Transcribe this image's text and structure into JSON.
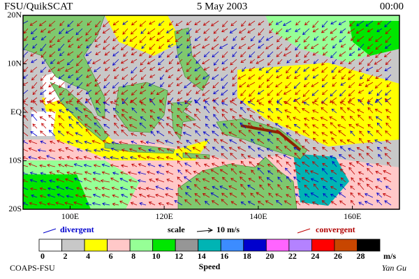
{
  "header": {
    "title": "FSU/QuikSCAT",
    "date": "5 May 2003",
    "time": "00:00"
  },
  "map": {
    "lat_labels": [
      "20N",
      "10N",
      "EQ",
      "10S",
      "20S"
    ],
    "lon_labels": [
      "100E",
      "120E",
      "140E",
      "160E"
    ]
  },
  "legend": {
    "divergent": "divergent",
    "scale": "scale",
    "scale_value": "10 m/s",
    "convergent": "convergent"
  },
  "colorbar": {
    "ticks": [
      0,
      2,
      4,
      6,
      8,
      10,
      12,
      14,
      16,
      18,
      20,
      22,
      24,
      26,
      28
    ],
    "unit": "m/s",
    "title": "Speed",
    "colors": [
      "#ffffff",
      "#c8c8c8",
      "#ffff00",
      "#ffc8c8",
      "#96ff96",
      "#00e600",
      "#969696",
      "#00b4b4",
      "#3c8cff",
      "#0000cd",
      "#ff64ff",
      "#b482ff",
      "#ff0000",
      "#c84600",
      "#000000"
    ]
  },
  "footer": {
    "left": "COAPS-FSU",
    "right": "Yan Gu"
  }
}
